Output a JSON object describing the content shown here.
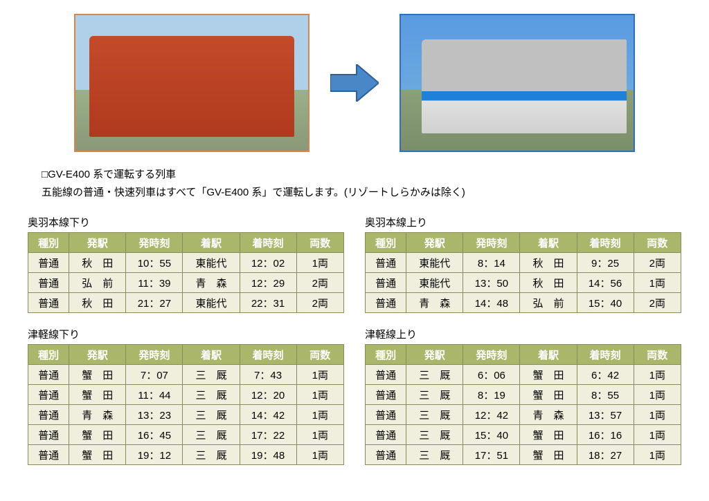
{
  "images": {
    "old_border_color": "#d9864a",
    "new_border_color": "#2e6fbf",
    "arrow_fill": "#4a87c7",
    "arrow_stroke": "#2b5f9a"
  },
  "description": {
    "line1": "□GV-E400 系で運転する列車",
    "line2": "五能線の普通・快速列車はすべて「GV-E400 系」で運転します。(リゾートしらかみは除く)"
  },
  "table_headers": {
    "type": "種別",
    "dep_station": "発駅",
    "dep_time": "発時刻",
    "arr_station": "着駅",
    "arr_time": "着時刻",
    "cars": "両数"
  },
  "tables": [
    {
      "title": "奥羽本線下り",
      "rows": [
        [
          "普通",
          "秋　田",
          "10：55",
          "東能代",
          "12：02",
          "1両"
        ],
        [
          "普通",
          "弘　前",
          "11：39",
          "青　森",
          "12：29",
          "2両"
        ],
        [
          "普通",
          "秋　田",
          "21：27",
          "東能代",
          "22：31",
          "2両"
        ]
      ]
    },
    {
      "title": "奥羽本線上り",
      "rows": [
        [
          "普通",
          "東能代",
          "8：14",
          "秋　田",
          "9：25",
          "2両"
        ],
        [
          "普通",
          "東能代",
          "13：50",
          "秋　田",
          "14：56",
          "1両"
        ],
        [
          "普通",
          "青　森",
          "14：48",
          "弘　前",
          "15：40",
          "2両"
        ]
      ]
    },
    {
      "title": "津軽線下り",
      "rows": [
        [
          "普通",
          "蟹　田",
          "7：07",
          "三　厩",
          "7：43",
          "1両"
        ],
        [
          "普通",
          "蟹　田",
          "11：44",
          "三　厩",
          "12：20",
          "1両"
        ],
        [
          "普通",
          "青　森",
          "13：23",
          "三　厩",
          "14：42",
          "1両"
        ],
        [
          "普通",
          "蟹　田",
          "16：45",
          "三　厩",
          "17：22",
          "1両"
        ],
        [
          "普通",
          "蟹　田",
          "19：12",
          "三　厩",
          "19：48",
          "1両"
        ]
      ]
    },
    {
      "title": "津軽線上り",
      "rows": [
        [
          "普通",
          "三　厩",
          "6：06",
          "蟹　田",
          "6：42",
          "1両"
        ],
        [
          "普通",
          "三　厩",
          "8：19",
          "蟹　田",
          "8：55",
          "1両"
        ],
        [
          "普通",
          "三　厩",
          "12：42",
          "青　森",
          "13：57",
          "1両"
        ],
        [
          "普通",
          "三　厩",
          "15：40",
          "蟹　田",
          "16：16",
          "1両"
        ],
        [
          "普通",
          "三　厩",
          "17：51",
          "蟹　田",
          "18：27",
          "1両"
        ]
      ]
    }
  ],
  "table_styling": {
    "header_bg": "#aab76a",
    "header_fg": "#ffffff",
    "cell_bg": "#f0eedd",
    "border_color": "#8a8a5a"
  }
}
